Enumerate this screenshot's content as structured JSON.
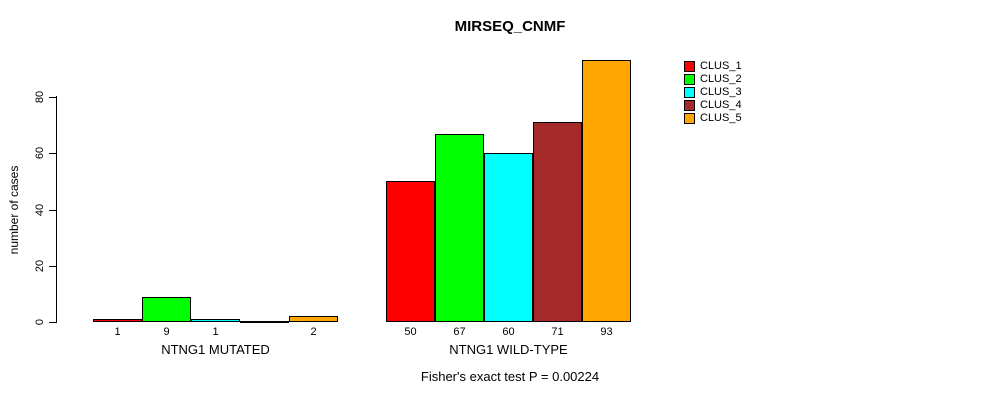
{
  "chart_data": {
    "type": "bar",
    "title": "MIRSEQ_CNMF",
    "ylabel": "number of cases",
    "yticks": [
      0,
      20,
      40,
      60,
      80
    ],
    "ylim": [
      0,
      95
    ],
    "grid": false,
    "legend_position": "right",
    "series": [
      {
        "name": "CLUS_1",
        "color": "#ff0000"
      },
      {
        "name": "CLUS_2",
        "color": "#00ff00"
      },
      {
        "name": "CLUS_3",
        "color": "#00ffff"
      },
      {
        "name": "CLUS_4",
        "color": "#a52a2a"
      },
      {
        "name": "CLUS_5",
        "color": "#ffa500"
      }
    ],
    "groups": [
      {
        "label": "NTNG1 MUTATED",
        "values": [
          1,
          9,
          1,
          0,
          2
        ],
        "bar_labels": [
          "1",
          "9",
          "1",
          "",
          "2"
        ]
      },
      {
        "label": "NTNG1 WILD-TYPE",
        "values": [
          50,
          67,
          60,
          71,
          93
        ],
        "bar_labels": [
          "50",
          "67",
          "60",
          "71",
          "93"
        ]
      }
    ],
    "annotation": "Fisher's exact test P = 0.00224"
  }
}
